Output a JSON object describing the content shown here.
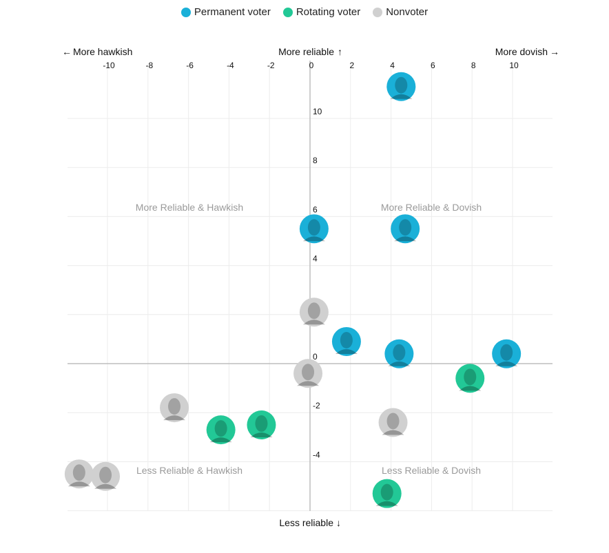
{
  "legend": [
    {
      "label": "Permanent voter",
      "color": "#1ab0d8"
    },
    {
      "label": "Rotating voter",
      "color": "#22c896"
    },
    {
      "label": "Nonvoter",
      "color": "#d0d0d0"
    }
  ],
  "directions": {
    "left": "More hawkish",
    "right": "More dovish",
    "top": "More reliable",
    "bottom": "Less reliable"
  },
  "quadrants": {
    "top_left": "More Reliable & Hawkish",
    "top_right": "More Reliable & Dovish",
    "bottom_left": "Less Reliable & Hawkish",
    "bottom_right": "Less Reliable & Dovish"
  },
  "chart_data": {
    "type": "scatter",
    "xlim": [
      -12,
      12
    ],
    "ylim": [
      -6,
      12
    ],
    "x_ticks": [
      -10,
      -8,
      -6,
      -4,
      -2,
      0,
      2,
      4,
      6,
      8,
      10
    ],
    "y_ticks": [
      -4,
      -2,
      0,
      4,
      6,
      8,
      10
    ],
    "grid": true,
    "series": [
      {
        "name": "Permanent voter",
        "color": "#1ab0d8",
        "points": [
          {
            "x": 4.5,
            "y": 11.3
          },
          {
            "x": 0.2,
            "y": 5.5
          },
          {
            "x": 4.7,
            "y": 5.5
          },
          {
            "x": 1.8,
            "y": 0.9
          },
          {
            "x": 4.4,
            "y": 0.4
          },
          {
            "x": 9.7,
            "y": 0.4
          }
        ]
      },
      {
        "name": "Rotating voter",
        "color": "#22c896",
        "points": [
          {
            "x": 7.9,
            "y": -0.6
          },
          {
            "x": -4.4,
            "y": -2.7
          },
          {
            "x": -2.4,
            "y": -2.5
          },
          {
            "x": 3.8,
            "y": -5.3
          }
        ]
      },
      {
        "name": "Nonvoter",
        "color": "#d0d0d0",
        "points": [
          {
            "x": 0.2,
            "y": 2.1
          },
          {
            "x": -0.1,
            "y": -0.4
          },
          {
            "x": -6.7,
            "y": -1.8
          },
          {
            "x": 4.1,
            "y": -2.4
          },
          {
            "x": -11.4,
            "y": -4.5
          },
          {
            "x": -10.1,
            "y": -4.6
          }
        ]
      }
    ]
  }
}
